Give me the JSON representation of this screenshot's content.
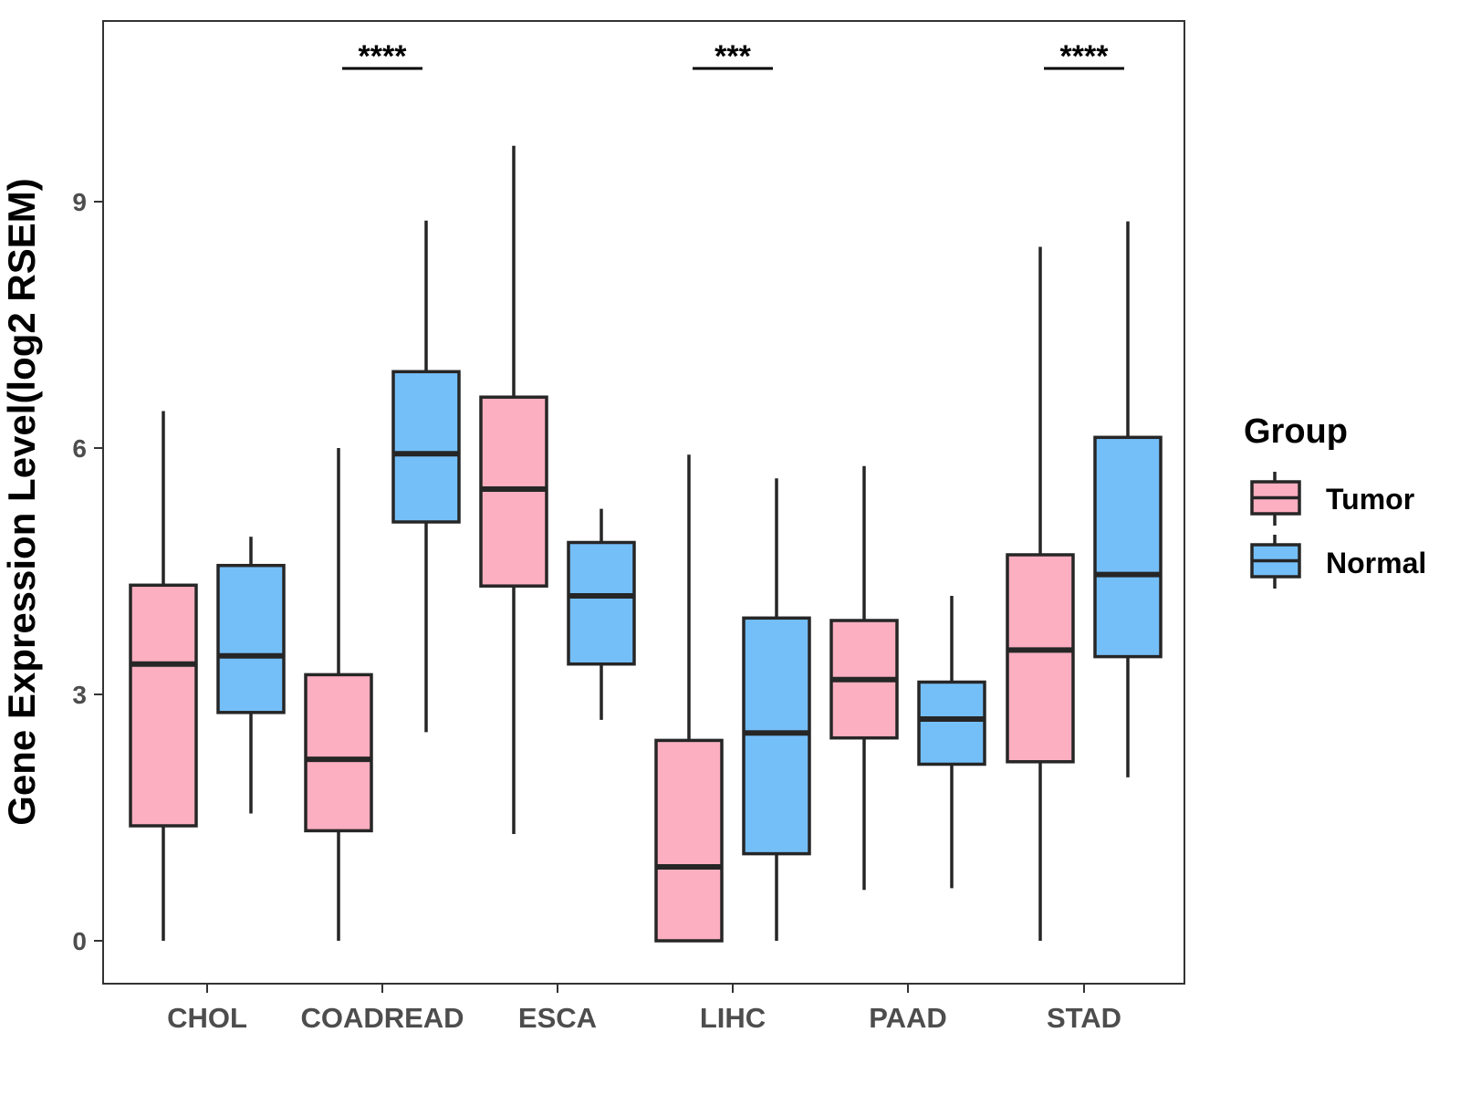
{
  "chart_data": {
    "type": "boxplot",
    "ylabel": "Gene Expression Level(log2 RSEM)",
    "xlabel": "",
    "categories": [
      "CHOL",
      "COADREAD",
      "ESCA",
      "LIHC",
      "PAAD",
      "STAD"
    ],
    "y_ticks": [
      0,
      3,
      6,
      9
    ],
    "y_tick_labels": [
      "0",
      "3",
      "6",
      "9"
    ],
    "ylim": [
      -0.5,
      11.2
    ],
    "grid": false,
    "legend": {
      "title": "Group",
      "position": "right",
      "items": [
        {
          "name": "Tumor",
          "color": "#fbafc0"
        },
        {
          "name": "Normal",
          "color": "#75bff8"
        }
      ]
    },
    "series": [
      {
        "name": "Tumor",
        "color": "#fbafc0",
        "boxes": [
          {
            "category": "CHOL",
            "min": 0.0,
            "q1": 1.4,
            "median": 3.37,
            "q3": 4.33,
            "max": 6.45
          },
          {
            "category": "COADREAD",
            "min": 0.0,
            "q1": 1.34,
            "median": 2.21,
            "q3": 3.24,
            "max": 6.0
          },
          {
            "category": "ESCA",
            "min": 1.3,
            "q1": 4.32,
            "median": 5.5,
            "q3": 6.62,
            "max": 9.68
          },
          {
            "category": "LIHC",
            "min": 0.0,
            "q1": 0.0,
            "median": 0.9,
            "q3": 2.44,
            "max": 5.92
          },
          {
            "category": "PAAD",
            "min": 0.62,
            "q1": 2.47,
            "median": 3.18,
            "q3": 3.9,
            "max": 5.78
          },
          {
            "category": "STAD",
            "min": 0.0,
            "q1": 2.18,
            "median": 3.54,
            "q3": 4.7,
            "max": 8.45
          }
        ]
      },
      {
        "name": "Normal",
        "color": "#75bff8",
        "boxes": [
          {
            "category": "CHOL",
            "min": 1.55,
            "q1": 2.78,
            "median": 3.47,
            "q3": 4.57,
            "max": 4.92
          },
          {
            "category": "COADREAD",
            "min": 2.54,
            "q1": 5.1,
            "median": 5.93,
            "q3": 6.93,
            "max": 8.77
          },
          {
            "category": "ESCA",
            "min": 2.69,
            "q1": 3.37,
            "median": 4.2,
            "q3": 4.85,
            "max": 5.26
          },
          {
            "category": "LIHC",
            "min": 0.0,
            "q1": 1.06,
            "median": 2.53,
            "q3": 3.93,
            "max": 5.63
          },
          {
            "category": "PAAD",
            "min": 0.64,
            "q1": 2.15,
            "median": 2.7,
            "q3": 3.15,
            "max": 4.2
          },
          {
            "category": "STAD",
            "min": 1.99,
            "q1": 3.46,
            "median": 4.46,
            "q3": 6.13,
            "max": 8.76
          }
        ]
      }
    ],
    "significance": [
      {
        "category": "COADREAD",
        "label": "****"
      },
      {
        "category": "LIHC",
        "label": "***"
      },
      {
        "category": "STAD",
        "label": "****"
      }
    ]
  }
}
